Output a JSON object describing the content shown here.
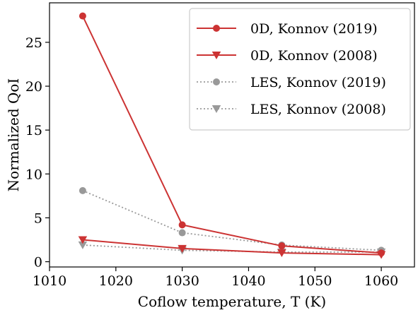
{
  "chart_data": {
    "type": "line",
    "title": "",
    "xlabel": "Coflow temperature, T (K)",
    "ylabel": "Normalized QoI",
    "xlim": [
      1010,
      1065
    ],
    "ylim": [
      -0.6,
      29.5
    ],
    "xticks": [
      1010,
      1020,
      1030,
      1040,
      1050,
      1060
    ],
    "yticks": [
      0,
      5,
      10,
      15,
      20,
      25
    ],
    "grid": false,
    "legend_position": "top-right",
    "x": [
      1015,
      1030,
      1045,
      1060
    ],
    "series": [
      {
        "name": "0D, Konnov (2019)",
        "values": [
          28.0,
          4.2,
          1.8,
          1.0
        ],
        "color": "#cc3333",
        "marker": "circle",
        "linestyle": "solid"
      },
      {
        "name": "0D, Konnov (2008)",
        "values": [
          2.5,
          1.5,
          1.0,
          0.8
        ],
        "color": "#cc3333",
        "marker": "triangle-down",
        "linestyle": "solid"
      },
      {
        "name": "LES, Konnov (2019)",
        "values": [
          8.1,
          3.3,
          1.9,
          1.3
        ],
        "color": "#999999",
        "marker": "circle",
        "linestyle": "dotted"
      },
      {
        "name": "LES, Konnov (2008)",
        "values": [
          1.9,
          1.3,
          1.1,
          1.1
        ],
        "color": "#999999",
        "marker": "triangle-down",
        "linestyle": "dotted"
      }
    ]
  }
}
